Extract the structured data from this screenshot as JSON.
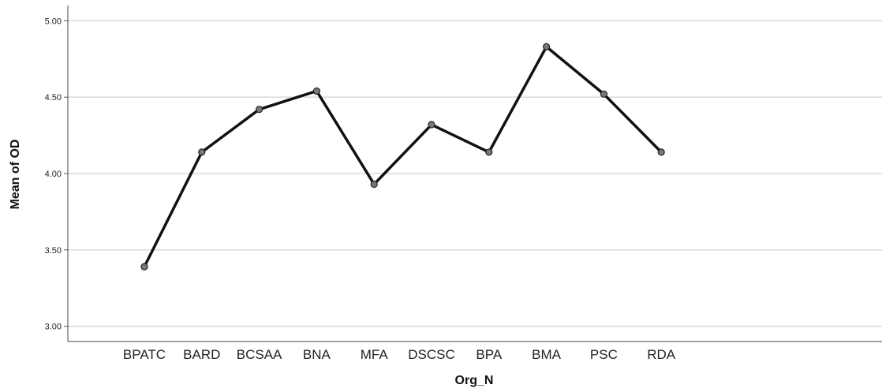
{
  "chart_data": {
    "type": "line",
    "xlabel": "Org_N",
    "ylabel": "Mean of OD",
    "categories": [
      "BPATC",
      "BARD",
      "BCSAA",
      "BNA",
      "MFA",
      "DSCSC",
      "BPA",
      "BMA",
      "PSC",
      "RDA"
    ],
    "series": [
      {
        "values": [
          3.39,
          4.14,
          4.42,
          4.54,
          3.93,
          4.32,
          4.14,
          4.83,
          4.52,
          4.14
        ]
      }
    ],
    "ylim": [
      2.9,
      5.1
    ],
    "yticks": [
      3.0,
      3.5,
      4.0,
      4.5,
      5.0
    ],
    "ytick_labels": [
      "3.00",
      "3.50",
      "4.00",
      "4.50",
      "5.00"
    ],
    "grid": true,
    "line_color": "#111111",
    "marker_color": "#777777",
    "grid_color": "#c8c8c8"
  }
}
